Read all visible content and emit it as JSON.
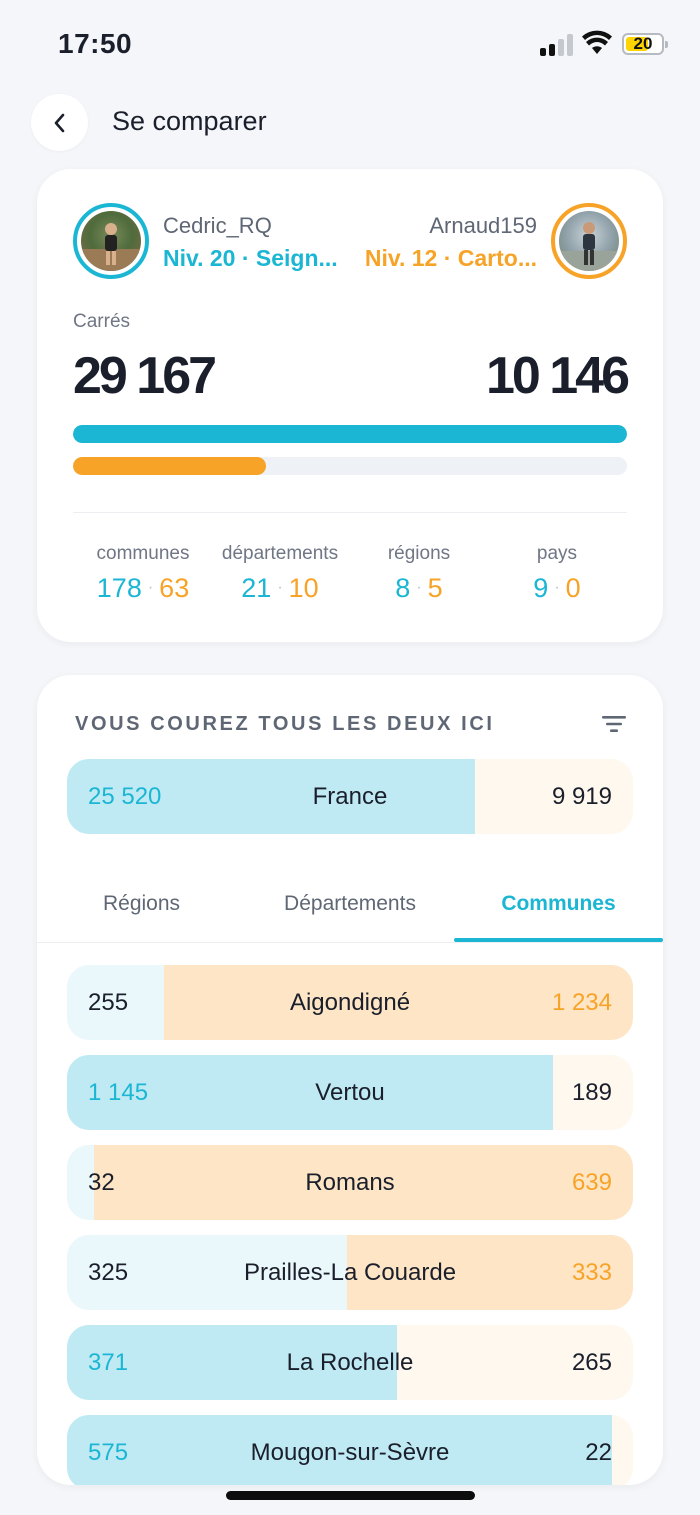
{
  "status_bar": {
    "time": "17:50",
    "battery": "20"
  },
  "header": {
    "title": "Se comparer",
    "back_icon": "chevron-left-icon"
  },
  "comparison": {
    "left_user": {
      "name": "Cedric_RQ",
      "level": "Niv. 20 · Seign...",
      "color": "#1bb6d4"
    },
    "right_user": {
      "name": "Arnaud159",
      "level": "Niv. 12 · Carto...",
      "color": "#f7a327"
    },
    "squares_label": "Carrés",
    "left_squares": "29 167",
    "right_squares": "10 146",
    "left_bar_fraction": 1.0,
    "right_bar_fraction": 0.348,
    "stats": [
      {
        "label": "communes",
        "left": "178",
        "right": "63"
      },
      {
        "label": "départements",
        "left": "21",
        "right": "10"
      },
      {
        "label": "régions",
        "left": "8",
        "right": "5"
      },
      {
        "label": "pays",
        "left": "9",
        "right": "0"
      }
    ]
  },
  "shared": {
    "title": "VOUS COUREZ TOUS LES DEUX ICI",
    "filter_icon": "filter-icon",
    "country": {
      "name": "France",
      "left": "25 520",
      "right": "9 919",
      "left_share": 0.72
    },
    "tabs": [
      {
        "label": "Régions",
        "active": false
      },
      {
        "label": "Départements",
        "active": false
      },
      {
        "label": "Communes",
        "active": true
      }
    ],
    "rows": [
      {
        "name": "Aigondigné",
        "left": "255",
        "right": "1 234",
        "left_share": 0.171
      },
      {
        "name": "Vertou",
        "left": "1 145",
        "right": "189",
        "left_share": 0.858
      },
      {
        "name": "Romans",
        "left": "32",
        "right": "639",
        "left_share": 0.048
      },
      {
        "name": "Prailles-La Couarde",
        "left": "325",
        "right": "333",
        "left_share": 0.494
      },
      {
        "name": "La Rochelle",
        "left": "371",
        "right": "265",
        "left_share": 0.583
      },
      {
        "name": "Mougon-sur-Sèvre",
        "left": "575",
        "right": "22",
        "left_share": 0.963
      }
    ]
  },
  "colors": {
    "left_strong": "#bfeaf3",
    "left_light": "#ebf8fb",
    "right_strong": "#fde5c6",
    "right_light": "#fef8ee"
  }
}
